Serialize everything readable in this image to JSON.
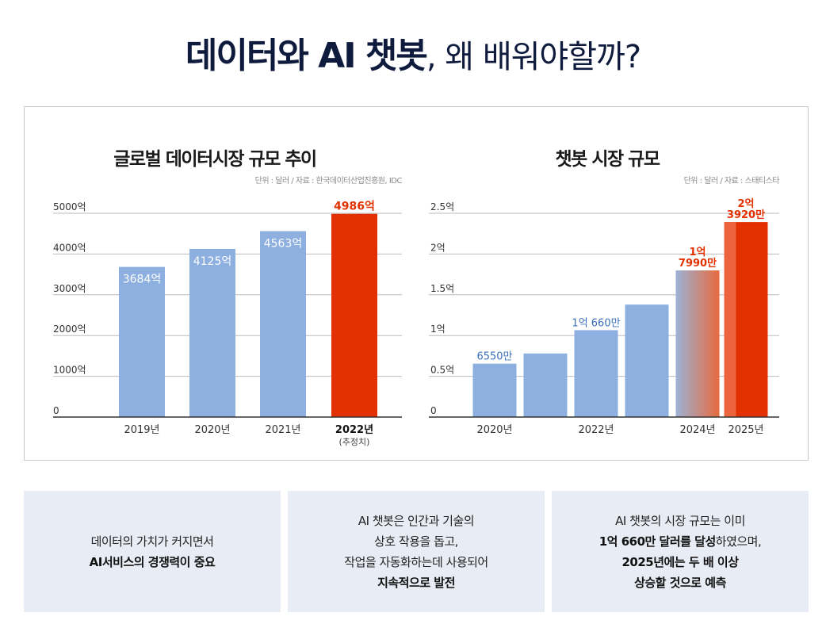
{
  "headline": {
    "strong": "데이터와 AI 챗봇",
    "light": ", 왜 배워야할까?"
  },
  "colors": {
    "bar": "#8db0e0",
    "highlight": "#e33000",
    "axis": "#333333",
    "grid": "#bbbbbb",
    "label_dark": "#222222"
  },
  "chart_data": [
    {
      "type": "bar",
      "title": "글로벌 데이터시장 규모 추이",
      "source": "단위 : 달러 / 자료 : 한국데이터산업진흥원, IDC",
      "ylim": [
        0,
        5000
      ],
      "yticks": [
        {
          "value": 0,
          "label": "0"
        },
        {
          "value": 1000,
          "label": "1000억"
        },
        {
          "value": 2000,
          "label": "2000억"
        },
        {
          "value": 3000,
          "label": "3000억"
        },
        {
          "value": 4000,
          "label": "4000억"
        },
        {
          "value": 5000,
          "label": "5000억"
        }
      ],
      "grid": true,
      "categories": [
        "2019년",
        "2020년",
        "2021년",
        "2022년"
      ],
      "category_notes": [
        "",
        "",
        "",
        "(추정치)"
      ],
      "values": [
        3684,
        4125,
        4563,
        4986
      ],
      "value_labels": [
        "3684억",
        "4125억",
        "4563억",
        "4986억"
      ],
      "highlight": [
        false,
        false,
        false,
        true
      ]
    },
    {
      "type": "bar",
      "title": "챗봇 시장 규모",
      "source": "단위 : 달러 / 자료 : 스태티스타",
      "ylim": [
        0,
        2.5
      ],
      "yticks": [
        {
          "value": 0,
          "label": "0"
        },
        {
          "value": 0.5,
          "label": "0.5억"
        },
        {
          "value": 1,
          "label": "1억"
        },
        {
          "value": 1.5,
          "label": "1.5억"
        },
        {
          "value": 2,
          "label": "2억"
        },
        {
          "value": 2.5,
          "label": "2.5억"
        }
      ],
      "grid": true,
      "categories": [
        "2020년",
        "",
        "2022년",
        "",
        "2024년",
        "2025년"
      ],
      "values": [
        0.655,
        0.78,
        1.066,
        1.38,
        1.799,
        2.392
      ],
      "value_labels": [
        [
          "6550만"
        ],
        [],
        [
          "1억 660만"
        ],
        [],
        [
          "1억",
          "7990만"
        ],
        [
          "2억",
          "3920만"
        ]
      ],
      "highlight": [
        false,
        false,
        false,
        false,
        "gradient",
        true
      ]
    }
  ],
  "cards": [
    {
      "lines": [
        [
          {
            "t": "데이터의 가치가 커지면서",
            "b": false
          }
        ],
        [
          {
            "t": "AI서비스의 경쟁력이 중요",
            "b": true
          }
        ]
      ]
    },
    {
      "lines": [
        [
          {
            "t": "AI 챗봇은 인간과 기술의",
            "b": false
          }
        ],
        [
          {
            "t": "상호 작용을 돕고,",
            "b": false
          }
        ],
        [
          {
            "t": "작업을 자동화하는데 사용되어",
            "b": false
          }
        ],
        [
          {
            "t": "지속적으로 발전",
            "b": true
          }
        ]
      ]
    },
    {
      "lines": [
        [
          {
            "t": "AI 챗봇의 시장 규모는 이미",
            "b": false
          }
        ],
        [
          {
            "t": "1억 660만 달러를 달성",
            "b": true
          },
          {
            "t": "하였으며,",
            "b": false
          }
        ],
        [
          {
            "t": "2025년에는 두 배 이상",
            "b": true
          }
        ],
        [
          {
            "t": "상승할 것으로 예측",
            "b": true
          }
        ]
      ]
    }
  ]
}
